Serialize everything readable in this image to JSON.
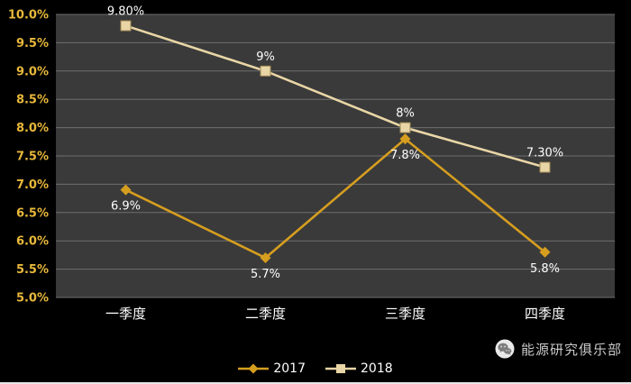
{
  "chart_data": {
    "type": "line",
    "categories": [
      "一季度",
      "二季度",
      "三季度",
      "四季度"
    ],
    "series": [
      {
        "name": "2017",
        "values": [
          6.9,
          5.7,
          7.8,
          5.8
        ],
        "labels": [
          "6.9%",
          "5.7%",
          "7.8%",
          "5.8%"
        ],
        "color": "#D69E1F",
        "marker": "diamond",
        "label_position": "below"
      },
      {
        "name": "2018",
        "values": [
          9.8,
          9.0,
          8.0,
          7.3
        ],
        "labels": [
          "9.80%",
          "9%",
          "8%",
          "7.30%"
        ],
        "color": "#E9D6A6",
        "marker": "square",
        "label_position": "above"
      }
    ],
    "ylim": [
      5.0,
      10.0
    ],
    "ytick_step": 0.5,
    "ytick_labels": [
      "5.0%",
      "5.5%",
      "6.0%",
      "6.5%",
      "7.0%",
      "7.5%",
      "8.0%",
      "8.5%",
      "9.0%",
      "9.5%",
      "10.0%"
    ],
    "grid": true,
    "legend_position": "bottom",
    "title": ""
  },
  "footer": {
    "brand": "能源研究俱乐部"
  },
  "colors": {
    "background": "#000000",
    "plot_bg": "#3A3A3A",
    "grid": "#6E6E6E",
    "y_tick_label": "#E8B83A",
    "x_tick_label": "#FFFFFF",
    "data_label": "#FFFFFF",
    "legend_text": "#FFFFFF",
    "footer_text": "#C9C9C9"
  }
}
